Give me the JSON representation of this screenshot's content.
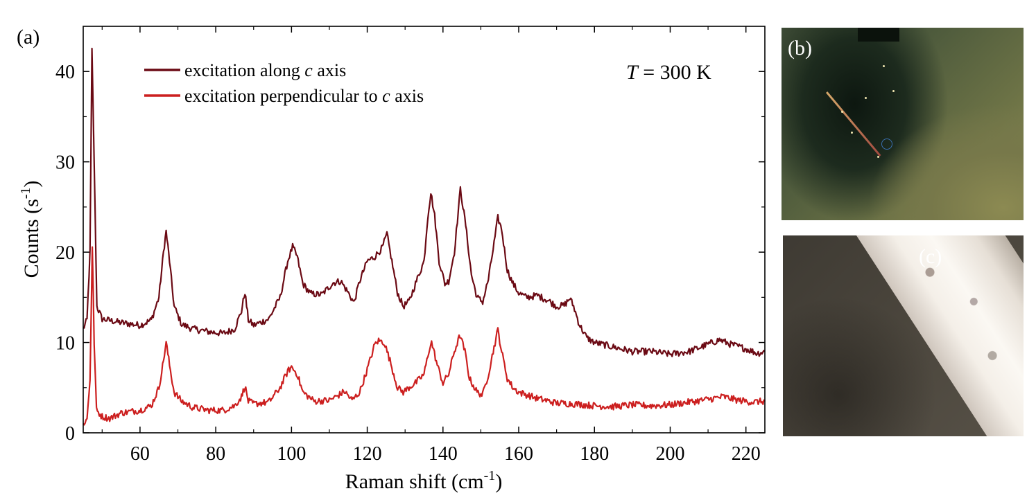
{
  "panel_a_label": "(a)",
  "panel_b_label": "(b)",
  "panel_c_label": "(c)",
  "temperature": {
    "symbol": "T",
    "text": " = 300 K"
  },
  "chart_data": {
    "type": "line",
    "title": "",
    "xlabel": {
      "text": "Raman shift (cm",
      "sup": "-1",
      "suffix": ")"
    },
    "ylabel": {
      "text": "Counts (s",
      "sup": "-1",
      "suffix": ")"
    },
    "xlim": [
      45,
      225
    ],
    "ylim": [
      0,
      45
    ],
    "xticks": [
      60,
      80,
      100,
      120,
      140,
      160,
      180,
      200,
      220
    ],
    "yticks": [
      0,
      10,
      20,
      30,
      40
    ],
    "legend_position": "top-left",
    "series": [
      {
        "name": "excitation along c axis",
        "legend_parts": [
          "excitation along ",
          "c",
          " axis"
        ],
        "color": "#6b0a14",
        "points": [
          [
            45,
            11.5
          ],
          [
            46,
            12.5
          ],
          [
            46.8,
            20
          ],
          [
            47.3,
            42.3
          ],
          [
            47.9,
            30
          ],
          [
            48.6,
            14
          ],
          [
            50,
            12.6
          ],
          [
            55,
            12.2
          ],
          [
            60,
            11.9
          ],
          [
            63,
            12.5
          ],
          [
            65,
            15
          ],
          [
            66.2,
            20
          ],
          [
            66.9,
            22.3
          ],
          [
            67.8,
            19
          ],
          [
            69,
            14
          ],
          [
            71,
            12
          ],
          [
            74,
            11.5
          ],
          [
            78,
            11.2
          ],
          [
            82,
            11
          ],
          [
            85,
            11.5
          ],
          [
            86.8,
            13.5
          ],
          [
            87.7,
            15.6
          ],
          [
            88.6,
            12.5
          ],
          [
            90,
            11.9
          ],
          [
            94,
            12.6
          ],
          [
            97,
            15
          ],
          [
            99,
            19
          ],
          [
            100.3,
            20.6
          ],
          [
            101.5,
            19.5
          ],
          [
            103,
            16.5
          ],
          [
            105,
            15.4
          ],
          [
            108,
            15.3
          ],
          [
            111,
            16.6
          ],
          [
            113,
            16.8
          ],
          [
            115,
            15.5
          ],
          [
            116.5,
            14.4
          ],
          [
            118,
            16.8
          ],
          [
            120,
            19
          ],
          [
            122,
            19.5
          ],
          [
            124,
            20.5
          ],
          [
            125.2,
            22
          ],
          [
            126.5,
            19
          ],
          [
            128,
            15.5
          ],
          [
            129.5,
            14
          ],
          [
            131,
            14.5
          ],
          [
            133,
            16.8
          ],
          [
            135,
            19
          ],
          [
            136,
            24
          ],
          [
            136.8,
            26.6
          ],
          [
            137.8,
            24
          ],
          [
            139,
            19
          ],
          [
            140.5,
            16.5
          ],
          [
            141.5,
            16.8
          ],
          [
            143,
            20
          ],
          [
            144.6,
            27
          ],
          [
            146,
            23
          ],
          [
            147.5,
            17.5
          ],
          [
            149,
            15
          ],
          [
            150.5,
            14.5
          ],
          [
            152,
            17
          ],
          [
            153.5,
            21
          ],
          [
            154.5,
            23.8
          ],
          [
            155.5,
            22.5
          ],
          [
            157,
            18
          ],
          [
            158.5,
            16.5
          ],
          [
            160,
            15.5
          ],
          [
            162,
            15
          ],
          [
            165,
            15.2
          ],
          [
            168,
            14.6
          ],
          [
            170,
            14
          ],
          [
            172,
            14.1
          ],
          [
            173.5,
            14.9
          ],
          [
            174.5,
            14
          ],
          [
            176,
            12
          ],
          [
            178,
            10.5
          ],
          [
            180,
            10
          ],
          [
            185,
            9.5
          ],
          [
            190,
            9
          ],
          [
            195,
            9
          ],
          [
            200,
            8.7
          ],
          [
            205,
            9
          ],
          [
            210,
            9.8
          ],
          [
            213,
            10.3
          ],
          [
            216,
            9.8
          ],
          [
            220,
            9.3
          ],
          [
            223,
            8.8
          ],
          [
            225,
            9
          ]
        ]
      },
      {
        "name": "excitation perpendicular to c axis",
        "legend_parts": [
          "excitation perpendicular to ",
          "c",
          " axis"
        ],
        "color": "#cc1f1f",
        "points": [
          [
            45,
            1
          ],
          [
            46,
            1.5
          ],
          [
            46.8,
            6
          ],
          [
            47.4,
            20.5
          ],
          [
            47.9,
            10
          ],
          [
            48.5,
            2.5
          ],
          [
            50,
            1.8
          ],
          [
            52,
            1.6
          ],
          [
            55,
            2.2
          ],
          [
            60,
            2.5
          ],
          [
            63,
            3
          ],
          [
            65,
            5
          ],
          [
            66.2,
            8
          ],
          [
            66.9,
            10
          ],
          [
            67.8,
            7.5
          ],
          [
            69,
            4.5
          ],
          [
            71,
            3.5
          ],
          [
            74,
            2.8
          ],
          [
            78,
            2.5
          ],
          [
            82,
            2.5
          ],
          [
            85,
            3
          ],
          [
            86.8,
            4
          ],
          [
            87.7,
            5.2
          ],
          [
            88.6,
            3.5
          ],
          [
            90,
            3.2
          ],
          [
            94,
            3.4
          ],
          [
            97,
            5
          ],
          [
            99,
            6.8
          ],
          [
            100,
            7.3
          ],
          [
            101.5,
            6.5
          ],
          [
            103,
            4.5
          ],
          [
            106,
            3.5
          ],
          [
            110,
            3.6
          ],
          [
            113,
            4.3
          ],
          [
            114,
            4.6
          ],
          [
            116,
            3.6
          ],
          [
            118,
            4.5
          ],
          [
            120,
            7
          ],
          [
            122,
            9.8
          ],
          [
            123,
            10.2
          ],
          [
            124.5,
            10
          ],
          [
            126,
            8
          ],
          [
            128,
            5
          ],
          [
            129.5,
            4.5
          ],
          [
            131,
            5
          ],
          [
            133,
            5.6
          ],
          [
            135,
            6.5
          ],
          [
            136.5,
            9.5
          ],
          [
            137,
            10
          ],
          [
            138.5,
            7.5
          ],
          [
            140,
            5.5
          ],
          [
            141.5,
            6.5
          ],
          [
            143,
            9
          ],
          [
            144.5,
            10.8
          ],
          [
            145.8,
            9
          ],
          [
            147,
            6
          ],
          [
            149,
            4.5
          ],
          [
            150.5,
            4.2
          ],
          [
            152,
            6.5
          ],
          [
            153.5,
            9.5
          ],
          [
            154.5,
            11.4
          ],
          [
            155.5,
            9
          ],
          [
            157,
            6
          ],
          [
            158.5,
            5
          ],
          [
            160,
            4.5
          ],
          [
            165,
            3.8
          ],
          [
            170,
            3.3
          ],
          [
            175,
            3.2
          ],
          [
            180,
            3
          ],
          [
            185,
            2.9
          ],
          [
            190,
            3.1
          ],
          [
            195,
            3
          ],
          [
            200,
            3.1
          ],
          [
            205,
            3.4
          ],
          [
            210,
            3.7
          ],
          [
            214,
            4
          ],
          [
            218,
            3.6
          ],
          [
            222,
            3.4
          ],
          [
            225,
            3.5
          ]
        ]
      }
    ]
  }
}
